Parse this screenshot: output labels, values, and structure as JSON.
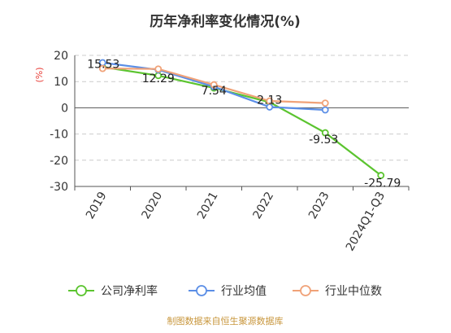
{
  "chart_data": {
    "type": "line",
    "title": "历年净利率变化情况(%)",
    "ylabel": "(%)",
    "categories": [
      "2019",
      "2020",
      "2021",
      "2022",
      "2023",
      "2024Q1-Q3"
    ],
    "ylim": [
      -30,
      20
    ],
    "yticks": [
      20,
      10,
      0,
      -10,
      -20,
      -30
    ],
    "grid": true,
    "legend_position": "bottom",
    "series": [
      {
        "name": "公司净利率",
        "color": "#5bc42f",
        "values": [
          15.53,
          12.29,
          7.54,
          2.13,
          -9.53,
          -25.79
        ],
        "labels": [
          "15.53",
          "12.29",
          "7.54",
          "2.13",
          "-9.53",
          "-25.79"
        ]
      },
      {
        "name": "行业均值",
        "color": "#5b8ee6",
        "values": [
          17.2,
          14.5,
          8.0,
          0.3,
          -0.8,
          null
        ]
      },
      {
        "name": "行业中位数",
        "color": "#f0a278",
        "values": [
          15.0,
          14.8,
          8.8,
          2.6,
          1.8,
          null
        ]
      }
    ],
    "source": "制图数据来自恒生聚源数据库"
  }
}
